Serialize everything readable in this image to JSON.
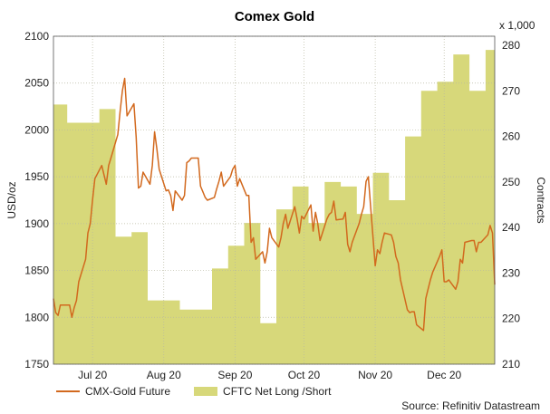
{
  "chart_data": {
    "type": "line",
    "title": "Comex Gold",
    "ylabel": "USD/oz",
    "y2label": "Contracts",
    "y2unit": "x 1,000",
    "source": "Source: Refinitiv Datastream",
    "ylim": [
      1750,
      2100
    ],
    "y2lim": [
      210,
      282
    ],
    "yticks": [
      1750,
      1800,
      1850,
      1900,
      1950,
      2000,
      2050,
      2100
    ],
    "y2ticks": [
      210,
      220,
      230,
      240,
      250,
      260,
      270,
      280
    ],
    "xlim": [
      "2020-06-22",
      "2020-12-31"
    ],
    "xticks": [
      {
        "date": "2020-07-09",
        "label": "Jul 20"
      },
      {
        "date": "2020-08-09",
        "label": "Aug 20"
      },
      {
        "date": "2020-09-09",
        "label": "Sep 20"
      },
      {
        "date": "2020-10-09",
        "label": "Oct 20"
      },
      {
        "date": "2020-11-09",
        "label": "Nov 20"
      },
      {
        "date": "2020-12-09",
        "label": "Dec 20"
      }
    ],
    "grid": true,
    "legend": "bottom-left",
    "series": [
      {
        "name": "CMX-Gold Future",
        "type": "line",
        "axis": "left",
        "color": "#d2691e",
        "points": [
          [
            "2020-06-22",
            1820
          ],
          [
            "2020-06-23",
            1805
          ],
          [
            "2020-06-24",
            1802
          ],
          [
            "2020-06-25",
            1813
          ],
          [
            "2020-06-26",
            1813
          ],
          [
            "2020-06-29",
            1813
          ],
          [
            "2020-06-30",
            1800
          ],
          [
            "2020-07-01",
            1810
          ],
          [
            "2020-07-02",
            1818
          ],
          [
            "2020-07-03",
            1838
          ],
          [
            "2020-07-06",
            1862
          ],
          [
            "2020-07-07",
            1890
          ],
          [
            "2020-07-08",
            1900
          ],
          [
            "2020-07-09",
            1925
          ],
          [
            "2020-07-10",
            1948
          ],
          [
            "2020-07-13",
            1962
          ],
          [
            "2020-07-14",
            1952
          ],
          [
            "2020-07-15",
            1942
          ],
          [
            "2020-07-16",
            1962
          ],
          [
            "2020-07-17",
            1970
          ],
          [
            "2020-07-20",
            1995
          ],
          [
            "2020-07-21",
            2020
          ],
          [
            "2020-07-22",
            2042
          ],
          [
            "2020-07-23",
            2055
          ],
          [
            "2020-07-24",
            2015
          ],
          [
            "2020-07-27",
            2028
          ],
          [
            "2020-07-28",
            1992
          ],
          [
            "2020-07-29",
            1938
          ],
          [
            "2020-07-30",
            1940
          ],
          [
            "2020-07-31",
            1955
          ],
          [
            "2020-08-03",
            1942
          ],
          [
            "2020-08-04",
            1962
          ],
          [
            "2020-08-05",
            1998
          ],
          [
            "2020-08-06",
            1980
          ],
          [
            "2020-08-07",
            1958
          ],
          [
            "2020-08-10",
            1935
          ],
          [
            "2020-08-11",
            1936
          ],
          [
            "2020-08-12",
            1930
          ],
          [
            "2020-08-13",
            1914
          ],
          [
            "2020-08-14",
            1935
          ],
          [
            "2020-08-17",
            1925
          ],
          [
            "2020-08-18",
            1930
          ],
          [
            "2020-08-19",
            1965
          ],
          [
            "2020-08-20",
            1967
          ],
          [
            "2020-08-21",
            1970
          ],
          [
            "2020-08-24",
            1970
          ],
          [
            "2020-08-25",
            1940
          ],
          [
            "2020-08-26",
            1934
          ],
          [
            "2020-08-27",
            1928
          ],
          [
            "2020-08-28",
            1925
          ],
          [
            "2020-08-31",
            1928
          ],
          [
            "2020-09-01",
            1937
          ],
          [
            "2020-09-02",
            1945
          ],
          [
            "2020-09-03",
            1955
          ],
          [
            "2020-09-04",
            1940
          ],
          [
            "2020-09-07",
            1950
          ],
          [
            "2020-09-08",
            1958
          ],
          [
            "2020-09-09",
            1962
          ],
          [
            "2020-09-10",
            1940
          ],
          [
            "2020-09-11",
            1948
          ],
          [
            "2020-09-14",
            1930
          ],
          [
            "2020-09-15",
            1930
          ],
          [
            "2020-09-16",
            1880
          ],
          [
            "2020-09-17",
            1885
          ],
          [
            "2020-09-18",
            1862
          ],
          [
            "2020-09-21",
            1870
          ],
          [
            "2020-09-22",
            1858
          ],
          [
            "2020-09-23",
            1870
          ],
          [
            "2020-09-24",
            1895
          ],
          [
            "2020-09-25",
            1885
          ],
          [
            "2020-09-28",
            1875
          ],
          [
            "2020-09-29",
            1885
          ],
          [
            "2020-09-30",
            1900
          ],
          [
            "2020-10-01",
            1910
          ],
          [
            "2020-10-02",
            1895
          ],
          [
            "2020-10-05",
            1918
          ],
          [
            "2020-10-06",
            1905
          ],
          [
            "2020-10-07",
            1890
          ],
          [
            "2020-10-08",
            1908
          ],
          [
            "2020-10-09",
            1905
          ],
          [
            "2020-10-12",
            1920
          ],
          [
            "2020-10-13",
            1892
          ],
          [
            "2020-10-14",
            1912
          ],
          [
            "2020-10-15",
            1900
          ],
          [
            "2020-10-16",
            1882
          ],
          [
            "2020-10-19",
            1905
          ],
          [
            "2020-10-20",
            1910
          ],
          [
            "2020-10-21",
            1912
          ],
          [
            "2020-10-22",
            1924
          ],
          [
            "2020-10-23",
            1904
          ],
          [
            "2020-10-26",
            1905
          ],
          [
            "2020-10-27",
            1912
          ],
          [
            "2020-10-28",
            1878
          ],
          [
            "2020-10-29",
            1870
          ],
          [
            "2020-10-30",
            1880
          ],
          [
            "2020-11-02",
            1900
          ],
          [
            "2020-11-03",
            1910
          ],
          [
            "2020-11-04",
            1918
          ],
          [
            "2020-11-05",
            1945
          ],
          [
            "2020-11-06",
            1950
          ],
          [
            "2020-11-09",
            1855
          ],
          [
            "2020-11-10",
            1872
          ],
          [
            "2020-11-11",
            1868
          ],
          [
            "2020-11-12",
            1880
          ],
          [
            "2020-11-13",
            1890
          ],
          [
            "2020-11-16",
            1888
          ],
          [
            "2020-11-17",
            1880
          ],
          [
            "2020-11-18",
            1865
          ],
          [
            "2020-11-19",
            1858
          ],
          [
            "2020-11-20",
            1840
          ],
          [
            "2020-11-23",
            1808
          ],
          [
            "2020-11-24",
            1805
          ],
          [
            "2020-11-25",
            1806
          ],
          [
            "2020-11-26",
            1806
          ],
          [
            "2020-11-27",
            1792
          ],
          [
            "2020-11-30",
            1786
          ],
          [
            "2020-12-01",
            1820
          ],
          [
            "2020-12-02",
            1830
          ],
          [
            "2020-12-03",
            1840
          ],
          [
            "2020-12-04",
            1848
          ],
          [
            "2020-12-07",
            1865
          ],
          [
            "2020-12-08",
            1872
          ],
          [
            "2020-12-09",
            1838
          ],
          [
            "2020-12-10",
            1838
          ],
          [
            "2020-12-11",
            1840
          ],
          [
            "2020-12-14",
            1830
          ],
          [
            "2020-12-15",
            1838
          ],
          [
            "2020-12-16",
            1862
          ],
          [
            "2020-12-17",
            1858
          ],
          [
            "2020-12-18",
            1880
          ],
          [
            "2020-12-21",
            1882
          ],
          [
            "2020-12-22",
            1882
          ],
          [
            "2020-12-23",
            1870
          ],
          [
            "2020-12-24",
            1880
          ],
          [
            "2020-12-25",
            1880
          ],
          [
            "2020-12-28",
            1888
          ],
          [
            "2020-12-29",
            1898
          ],
          [
            "2020-12-30",
            1890
          ],
          [
            "2020-12-31",
            1835
          ]
        ]
      },
      {
        "name": "CFTC Net Long /Short",
        "type": "area",
        "axis": "right",
        "color": "#d7d87a",
        "step_points": [
          [
            "2020-06-22",
            267
          ],
          [
            "2020-06-28",
            263
          ],
          [
            "2020-07-05",
            263
          ],
          [
            "2020-07-12",
            266
          ],
          [
            "2020-07-19",
            238
          ],
          [
            "2020-07-26",
            239
          ],
          [
            "2020-08-02",
            224
          ],
          [
            "2020-08-09",
            224
          ],
          [
            "2020-08-16",
            222
          ],
          [
            "2020-08-23",
            222
          ],
          [
            "2020-08-30",
            231
          ],
          [
            "2020-09-06",
            236
          ],
          [
            "2020-09-13",
            241
          ],
          [
            "2020-09-20",
            219
          ],
          [
            "2020-09-27",
            244
          ],
          [
            "2020-10-04",
            249
          ],
          [
            "2020-10-11",
            241
          ],
          [
            "2020-10-18",
            250
          ],
          [
            "2020-10-25",
            249
          ],
          [
            "2020-11-01",
            243
          ],
          [
            "2020-11-08",
            252
          ],
          [
            "2020-11-15",
            246
          ],
          [
            "2020-11-22",
            260
          ],
          [
            "2020-11-29",
            270
          ],
          [
            "2020-12-06",
            272
          ],
          [
            "2020-12-13",
            278
          ],
          [
            "2020-12-20",
            270
          ],
          [
            "2020-12-27",
            279
          ],
          [
            "2020-12-31",
            279
          ]
        ]
      }
    ]
  }
}
